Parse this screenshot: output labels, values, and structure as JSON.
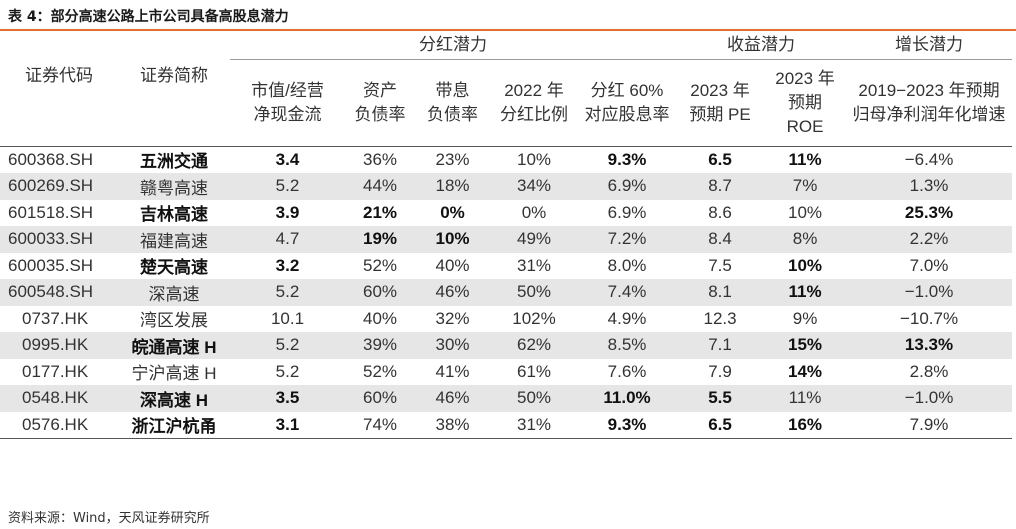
{
  "caption": "表 4：部分高速公路上市公司具备高股息潜力",
  "groups": {
    "dividend": "分红潜力",
    "earnings": "收益潜力",
    "growth": "增长潜力"
  },
  "headers": {
    "code": "证券代码",
    "name": "证券简称",
    "mv_ocf_1": "市值/经营",
    "mv_ocf_2": "净现金流",
    "debt_1": "资产",
    "debt_2": "负债率",
    "int_debt_1": "带息",
    "int_debt_2": "负债率",
    "payout_1": "2022 年",
    "payout_2": "分红比例",
    "yield_1": "分红 60%",
    "yield_2": "对应股息率",
    "pe_1": "2023 年",
    "pe_2": "预期 PE",
    "roe_1": "2023 年",
    "roe_2": "预期",
    "roe_3": "ROE",
    "growth_1": "2019−2023 年预期",
    "growth_2": "归母净利润年化增速"
  },
  "rows": [
    {
      "code": "600368.SH",
      "name": "五洲交通",
      "mv_ocf": "3.4",
      "debt": "36%",
      "int_debt": "23%",
      "payout": "10%",
      "yield": "9.3%",
      "pe": "6.5",
      "roe": "11%",
      "growth": "−6.4%"
    },
    {
      "code": "600269.SH",
      "name": "赣粤高速",
      "mv_ocf": "5.2",
      "debt": "44%",
      "int_debt": "18%",
      "payout": "34%",
      "yield": "6.9%",
      "pe": "8.7",
      "roe": "7%",
      "growth": "1.3%"
    },
    {
      "code": "601518.SH",
      "name": "吉林高速",
      "mv_ocf": "3.9",
      "debt": "21%",
      "int_debt": "0%",
      "payout": "0%",
      "yield": "6.9%",
      "pe": "8.6",
      "roe": "10%",
      "growth": "25.3%"
    },
    {
      "code": "600033.SH",
      "name": "福建高速",
      "mv_ocf": "4.7",
      "debt": "19%",
      "int_debt": "10%",
      "payout": "49%",
      "yield": "7.2%",
      "pe": "8.4",
      "roe": "8%",
      "growth": "2.2%"
    },
    {
      "code": "600035.SH",
      "name": "楚天高速",
      "mv_ocf": "3.2",
      "debt": "52%",
      "int_debt": "40%",
      "payout": "31%",
      "yield": "8.0%",
      "pe": "7.5",
      "roe": "10%",
      "growth": "7.0%"
    },
    {
      "code": "600548.SH",
      "name": "深高速",
      "mv_ocf": "5.2",
      "debt": "60%",
      "int_debt": "46%",
      "payout": "50%",
      "yield": "7.4%",
      "pe": "8.1",
      "roe": "11%",
      "growth": "−1.0%"
    },
    {
      "code": "0737.HK",
      "name": "湾区发展",
      "mv_ocf": "10.1",
      "debt": "40%",
      "int_debt": "32%",
      "payout": "102%",
      "yield": "4.9%",
      "pe": "12.3",
      "roe": "9%",
      "growth": "−10.7%"
    },
    {
      "code": "0995.HK",
      "name": "皖通高速 H",
      "mv_ocf": "5.2",
      "debt": "39%",
      "int_debt": "30%",
      "payout": "62%",
      "yield": "8.5%",
      "pe": "7.1",
      "roe": "15%",
      "growth": "13.3%"
    },
    {
      "code": "0177.HK",
      "name": "宁沪高速 H",
      "mv_ocf": "5.2",
      "debt": "52%",
      "int_debt": "41%",
      "payout": "61%",
      "yield": "7.6%",
      "pe": "7.9",
      "roe": "14%",
      "growth": "2.8%"
    },
    {
      "code": "0548.HK",
      "name": "深高速 H",
      "mv_ocf": "3.5",
      "debt": "60%",
      "int_debt": "46%",
      "payout": "50%",
      "yield": "11.0%",
      "pe": "5.5",
      "roe": "11%",
      "growth": "−1.0%"
    },
    {
      "code": "0576.HK",
      "name": "浙江沪杭甬",
      "mv_ocf": "3.1",
      "debt": "74%",
      "int_debt": "38%",
      "payout": "31%",
      "yield": "9.3%",
      "pe": "6.5",
      "roe": "16%",
      "growth": "7.9%"
    }
  ],
  "source": "资料来源：Wind，天风证券研究所"
}
